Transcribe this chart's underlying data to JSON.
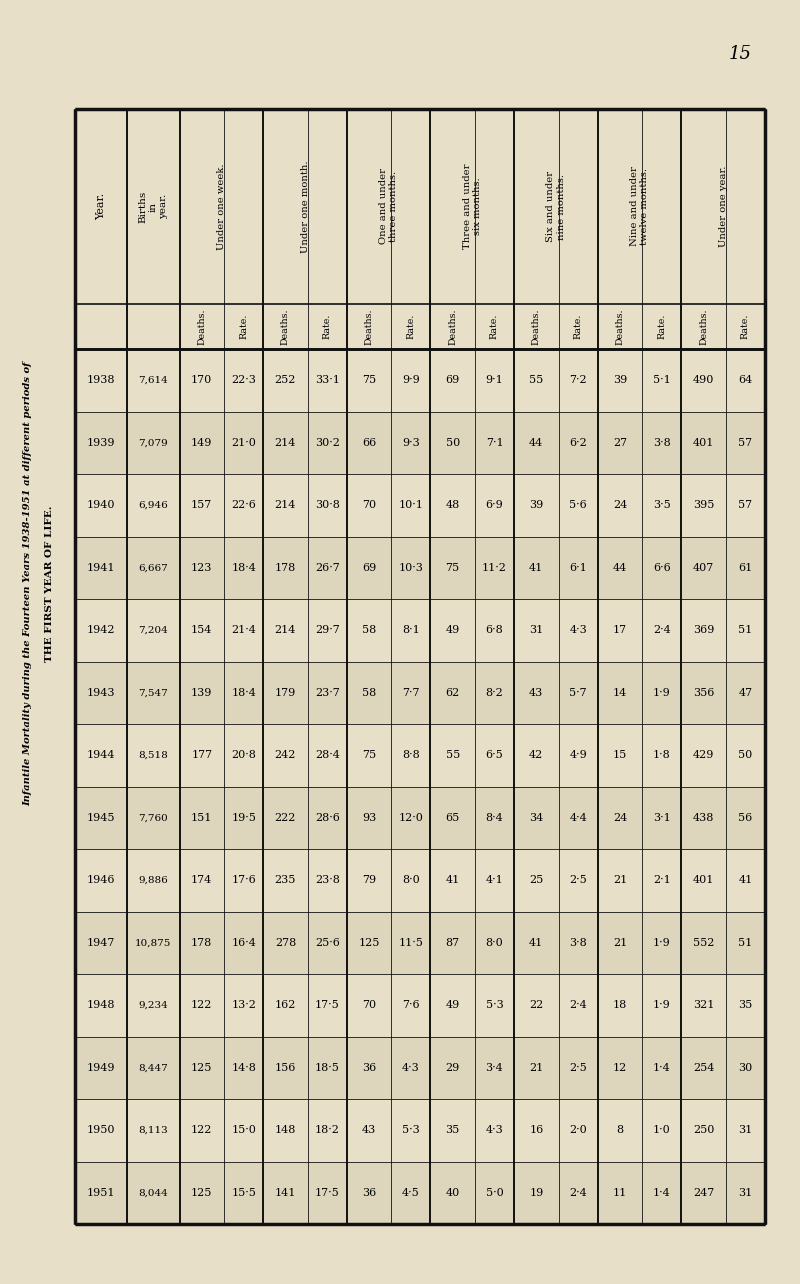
{
  "title_line1": "Infantile Mortality during the Fourteen Years 1938-1951 at different periods of",
  "title_line2": "THE FIRST YEAR OF LIFE.",
  "page_number": "15",
  "bg_color": "#e8dfc8",
  "table_bg_even": "#ddd5bc",
  "years": [
    "1938",
    "1939",
    "1940",
    "1941",
    "1942",
    "1943",
    "1944",
    "1945",
    "1946",
    "1947",
    "1948",
    "1949",
    "1950",
    "1951"
  ],
  "births": [
    "7,614",
    "7,079",
    "6,946",
    "6,667",
    "7,204",
    "7,547",
    "8,518",
    "7,760",
    "9,886",
    "10,875",
    "9,234",
    "8,447",
    "8,113",
    "8,044"
  ],
  "under_one_week_deaths": [
    "170",
    "149",
    "157",
    "123",
    "154",
    "139",
    "177",
    "151",
    "174",
    "178",
    "122",
    "125",
    "122",
    "125"
  ],
  "under_one_week_rate": [
    "22·3",
    "21·0",
    "22·6",
    "18·4",
    "21·4",
    "18·4",
    "20·8",
    "19·5",
    "17·6",
    "16·4",
    "13·2",
    "14·8",
    "15·0",
    "15·5"
  ],
  "under_one_month_deaths": [
    "252",
    "214",
    "214",
    "178",
    "214",
    "179",
    "242",
    "222",
    "235",
    "278",
    "162",
    "156",
    "148",
    "141"
  ],
  "under_one_month_rate": [
    "33·1",
    "30·2",
    "30·8",
    "26·7",
    "29·7",
    "23·7",
    "28·4",
    "28·6",
    "23·8",
    "25·6",
    "17·5",
    "18·5",
    "18·2",
    "17·5"
  ],
  "one_three_deaths": [
    "75",
    "66",
    "70",
    "69",
    "58",
    "58",
    "75",
    "93",
    "79",
    "125",
    "70",
    "36",
    "43",
    "36"
  ],
  "one_three_rate": [
    "9·9",
    "9·3",
    "10·1",
    "10·3",
    "8·1",
    "7·7",
    "8·8",
    "12·0",
    "8·0",
    "11·5",
    "7·6",
    "4·3",
    "5·3",
    "4·5"
  ],
  "three_six_deaths": [
    "69",
    "50",
    "48",
    "75",
    "49",
    "62",
    "55",
    "65",
    "41",
    "87",
    "49",
    "29",
    "35",
    "40"
  ],
  "three_six_rate": [
    "9·1",
    "7·1",
    "6·9",
    "11·2",
    "6·8",
    "8·2",
    "6·5",
    "8·4",
    "4·1",
    "8·0",
    "5·3",
    "3·4",
    "4·3",
    "5·0"
  ],
  "six_nine_deaths": [
    "55",
    "44",
    "39",
    "41",
    "31",
    "43",
    "42",
    "34",
    "25",
    "41",
    "22",
    "21",
    "16",
    "19"
  ],
  "six_nine_rate": [
    "7·2",
    "6·2",
    "5·6",
    "6·1",
    "4·3",
    "5·7",
    "4·9",
    "4·4",
    "2·5",
    "3·8",
    "2·4",
    "2·5",
    "2·0",
    "2·4"
  ],
  "nine_twelve_deaths": [
    "39",
    "27",
    "24",
    "44",
    "17",
    "14",
    "15",
    "24",
    "21",
    "21",
    "18",
    "12",
    "8",
    "11"
  ],
  "nine_twelve_rate": [
    "5·1",
    "3·8",
    "3·5",
    "6·6",
    "2·4",
    "1·9",
    "1·8",
    "3·1",
    "2·1",
    "1·9",
    "1·9",
    "1·4",
    "1·0",
    "1·4"
  ],
  "under_year_deaths": [
    "490",
    "401",
    "395",
    "407",
    "369",
    "356",
    "429",
    "438",
    "401",
    "552",
    "321",
    "254",
    "250",
    "247"
  ],
  "under_year_rate": [
    "64",
    "57",
    "57",
    "61",
    "51",
    "47",
    "50",
    "56",
    "41",
    "51",
    "35",
    "30",
    "31",
    "31"
  ],
  "col_groups": [
    {
      "label": "Year.",
      "subcols": 1
    },
    {
      "label": "Births\nin\nyear.",
      "subcols": 1
    },
    {
      "label": "Under one week.",
      "subcols": 2
    },
    {
      "label": "Under one month.",
      "subcols": 2
    },
    {
      "label": "One and under\nthree months.",
      "subcols": 2
    },
    {
      "label": "Three and under\nsix months.",
      "subcols": 2
    },
    {
      "label": "Six and under\nnine months.",
      "subcols": 2
    },
    {
      "label": "Nine and under\ntwelve months.",
      "subcols": 2
    },
    {
      "label": "Under one year.",
      "subcols": 2
    }
  ]
}
